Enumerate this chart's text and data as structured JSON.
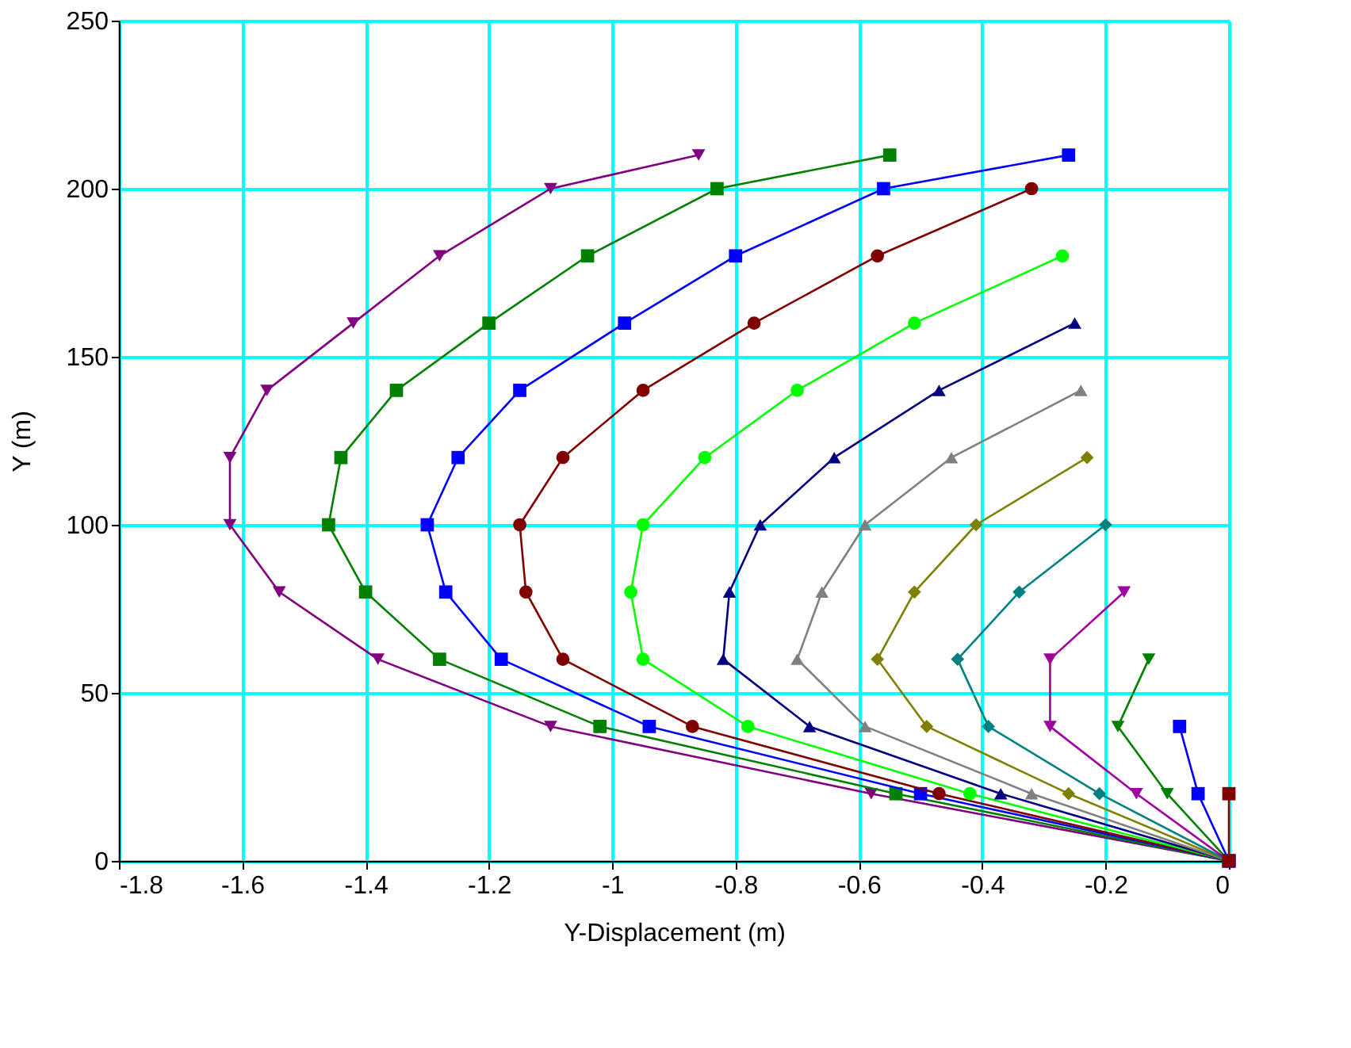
{
  "chart_data": {
    "type": "line",
    "xlabel": "Y-Displacement (m)",
    "ylabel": "Y (m)",
    "xlim": [
      -1.8,
      0
    ],
    "ylim": [
      0,
      250
    ],
    "xticks": [
      -1.8,
      -1.6,
      -1.4,
      -1.2,
      -1,
      -0.8,
      -0.6,
      -0.4,
      -0.2,
      0
    ],
    "yticks": [
      0,
      50,
      100,
      150,
      200,
      250
    ],
    "grid": true,
    "line_style": "solid",
    "series": [
      {
        "color": "#800080",
        "marker": "triangle-down",
        "x": [
          0,
          -0.58,
          -1.1,
          -1.38,
          -1.54,
          -1.62,
          -1.62,
          -1.56,
          -1.42,
          -1.28,
          -1.1,
          -0.86
        ],
        "values": [
          0,
          20,
          40,
          60,
          80,
          100,
          120,
          140,
          160,
          180,
          200,
          210
        ]
      },
      {
        "color": "#008000",
        "marker": "square",
        "x": [
          0,
          -0.54,
          -1.02,
          -1.28,
          -1.4,
          -1.46,
          -1.44,
          -1.35,
          -1.2,
          -1.04,
          -0.83,
          -0.55
        ],
        "values": [
          0,
          20,
          40,
          60,
          80,
          100,
          120,
          140,
          160,
          180,
          200,
          210
        ]
      },
      {
        "color": "#0000ff",
        "marker": "square",
        "x": [
          0,
          -0.5,
          -0.94,
          -1.18,
          -1.27,
          -1.3,
          -1.25,
          -1.15,
          -0.98,
          -0.8,
          -0.56,
          -0.26
        ],
        "values": [
          0,
          20,
          40,
          60,
          80,
          100,
          120,
          140,
          160,
          180,
          200,
          210
        ]
      },
      {
        "color": "#800000",
        "marker": "circle",
        "x": [
          0,
          -0.47,
          -0.87,
          -1.08,
          -1.14,
          -1.15,
          -1.08,
          -0.95,
          -0.77,
          -0.57,
          -0.32
        ],
        "values": [
          0,
          20,
          40,
          60,
          80,
          100,
          120,
          140,
          160,
          180,
          200
        ]
      },
      {
        "color": "#00ff00",
        "marker": "circle",
        "x": [
          0,
          -0.42,
          -0.78,
          -0.95,
          -0.97,
          -0.95,
          -0.85,
          -0.7,
          -0.51,
          -0.27
        ],
        "values": [
          0,
          20,
          40,
          60,
          80,
          100,
          120,
          140,
          160,
          180
        ]
      },
      {
        "color": "#000080",
        "marker": "triangle",
        "x": [
          0,
          -0.37,
          -0.68,
          -0.82,
          -0.81,
          -0.76,
          -0.64,
          -0.47,
          -0.25
        ],
        "values": [
          0,
          20,
          40,
          60,
          80,
          100,
          120,
          140,
          160
        ]
      },
      {
        "color": "#808080",
        "marker": "triangle",
        "x": [
          0,
          -0.32,
          -0.59,
          -0.7,
          -0.66,
          -0.59,
          -0.45,
          -0.24
        ],
        "values": [
          0,
          20,
          40,
          60,
          80,
          100,
          120,
          140
        ]
      },
      {
        "color": "#808000",
        "marker": "diamond",
        "x": [
          0,
          -0.26,
          -0.49,
          -0.57,
          -0.51,
          -0.41,
          -0.23
        ],
        "values": [
          0,
          20,
          40,
          60,
          80,
          100,
          120
        ]
      },
      {
        "color": "#008080",
        "marker": "diamond",
        "x": [
          0,
          -0.21,
          -0.39,
          -0.44,
          -0.34,
          -0.2
        ],
        "values": [
          0,
          20,
          40,
          60,
          80,
          100
        ]
      },
      {
        "color": "#a000a0",
        "marker": "triangle-down",
        "x": [
          0,
          -0.15,
          -0.29,
          -0.29,
          -0.17
        ],
        "values": [
          0,
          20,
          40,
          60,
          80
        ]
      },
      {
        "color": "#008000",
        "marker": "triangle-down",
        "x": [
          0,
          -0.1,
          -0.18,
          -0.13
        ],
        "values": [
          0,
          20,
          40,
          60
        ]
      },
      {
        "color": "#0000ff",
        "marker": "square",
        "x": [
          0,
          -0.05,
          -0.08
        ],
        "values": [
          0,
          20,
          40
        ]
      },
      {
        "color": "#800000",
        "marker": "square",
        "x": [
          0,
          0
        ],
        "values": [
          0,
          20
        ]
      }
    ]
  }
}
